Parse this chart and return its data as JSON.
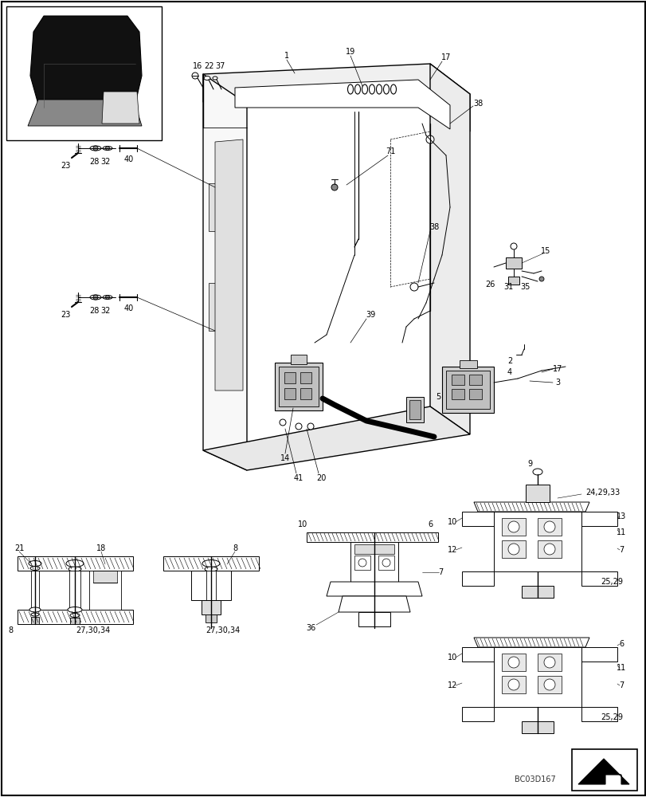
{
  "bg_color": "#ffffff",
  "lc": "#000000",
  "watermark": "BC03D167",
  "figsize": [
    8.12,
    10.0
  ],
  "dpi": 100
}
